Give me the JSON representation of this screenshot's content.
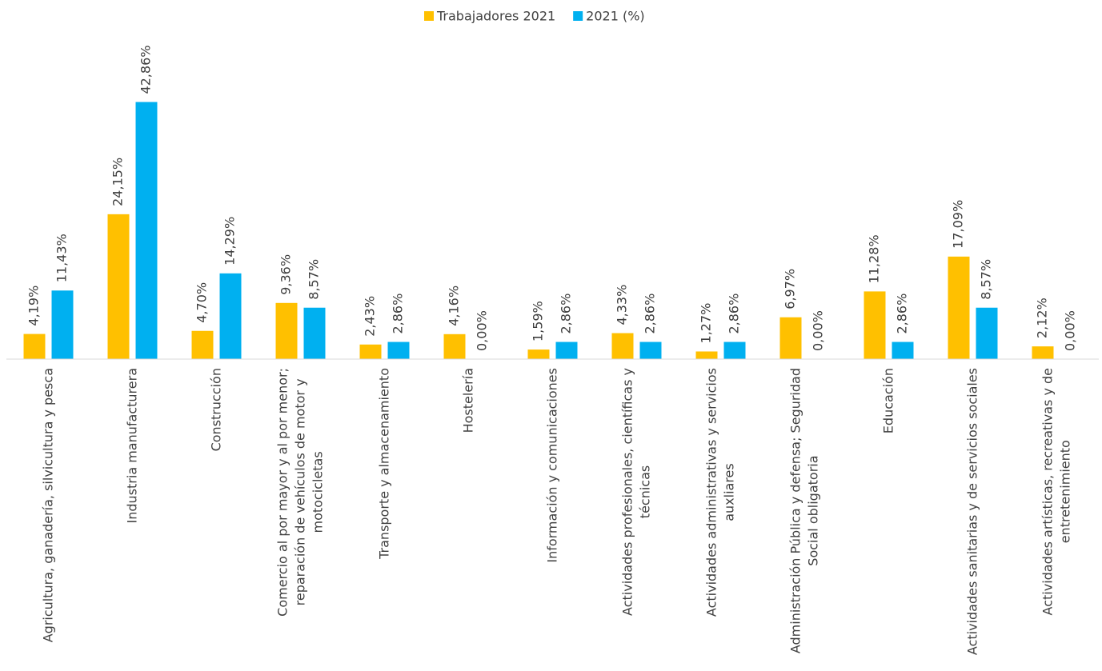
{
  "chart_data": {
    "type": "bar",
    "categories": [
      "Agricultura, ganadería, silvicultura y pesca",
      "Industria manufacturera",
      "Construcción",
      "Comercio al por mayor y al por menor; reparación de vehículos de motor y motocicletas",
      "Transporte y almacenamiento",
      "Hostelería",
      "Información y comunicaciones",
      "Actividades profesionales, científicas y técnicas",
      "Actividades administrativas y servicios auxliares",
      "Administración Pública y defensa; Seguridad Social obligatoria",
      "Educación",
      "Actividades sanitarias y de servicios sociales",
      "Actividades artísticas, recreativas y de entretenimiento"
    ],
    "series": [
      {
        "name": "Trabajadores 2021",
        "color": "#ffc000",
        "values": [
          4.19,
          24.15,
          4.7,
          9.36,
          2.43,
          4.16,
          1.59,
          4.33,
          1.27,
          6.97,
          11.28,
          17.09,
          2.12
        ],
        "value_labels": [
          "4,19%",
          "24,15%",
          "4,70%",
          "9,36%",
          "2,43%",
          "4,16%",
          "1,59%",
          "4,33%",
          "1,27%",
          "6,97%",
          "11,28%",
          "17,09%",
          "2,12%"
        ]
      },
      {
        "name": "2021 (%)",
        "color": "#00b0f0",
        "values": [
          11.43,
          42.86,
          14.29,
          8.57,
          2.86,
          0.0,
          2.86,
          2.86,
          2.86,
          0.0,
          2.86,
          8.57,
          0.0
        ],
        "value_labels": [
          "11,43%",
          "42,86%",
          "14,29%",
          "8,57%",
          "2,86%",
          "0,00%",
          "2,86%",
          "2,86%",
          "2,86%",
          "0,00%",
          "2,86%",
          "8,57%",
          "0,00%"
        ]
      }
    ],
    "ylim": [
      0,
      50
    ],
    "legend": "top"
  }
}
